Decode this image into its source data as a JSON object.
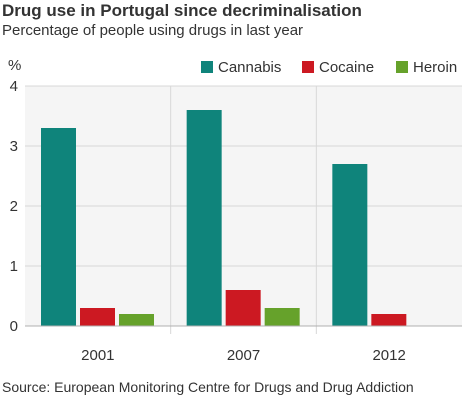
{
  "chart_data": {
    "type": "bar",
    "title": "Drug use in Portugal since decriminalisation",
    "subtitle": "Percentage of people using drugs in last year",
    "ylabel": "%",
    "xlabel": "",
    "categories": [
      "2001",
      "2007",
      "2012"
    ],
    "ylim": [
      0,
      4
    ],
    "yticks": [
      0,
      1,
      2,
      3,
      4
    ],
    "grid": true,
    "legend_position": "top-right",
    "series": [
      {
        "name": "Cannabis",
        "color": "#0f847b",
        "values": [
          3.3,
          3.6,
          2.7
        ]
      },
      {
        "name": "Cocaine",
        "color": "#cc1922",
        "values": [
          0.3,
          0.6,
          0.2
        ]
      },
      {
        "name": "Heroin",
        "color": "#66a22b",
        "values": [
          0.2,
          0.3,
          null
        ]
      }
    ],
    "source": "Source: European Monitoring Centre for Drugs and Drug Addiction"
  }
}
